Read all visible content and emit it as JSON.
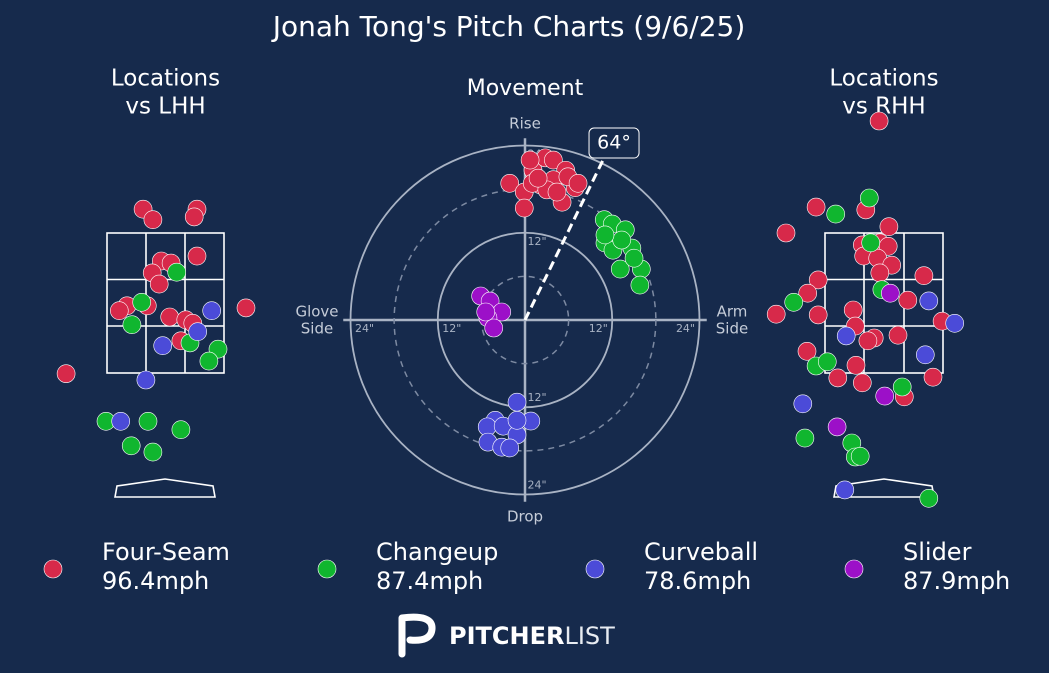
{
  "title": "Jonah Tong's Pitch Charts (9/6/25)",
  "logo": {
    "bold": "PITCHER",
    "light": "LIST"
  },
  "chart_data": [
    {
      "type": "location",
      "title": [
        "Locations",
        "vs LHH"
      ],
      "xlim": [
        -1.6,
        1.6
      ],
      "ylim": [
        -0.5,
        5.3
      ],
      "series": [
        {
          "color": "#d7294a",
          "x": [
            -0.32,
            -0.18,
            0.45,
            0.41,
            0.45,
            -0.06,
            0.08,
            -0.19,
            -0.09,
            1.15,
            -0.55,
            -0.66,
            -0.26,
            0.06,
            0.29,
            0.39,
            0.22,
            -1.42
          ],
          "y": [
            3.84,
            3.69,
            3.84,
            3.73,
            3.17,
            3.1,
            3.07,
            2.93,
            2.77,
            2.43,
            2.46,
            2.39,
            2.46,
            2.3,
            2.26,
            2.21,
            1.96,
            1.49
          ]
        },
        {
          "color": "#10b62f",
          "x": [
            0.16,
            -0.34,
            -0.48,
            0.35,
            0.75,
            0.62,
            -0.85,
            -0.25,
            0.22,
            -0.49,
            -0.18
          ],
          "y": [
            2.94,
            2.51,
            2.19,
            1.93,
            1.84,
            1.67,
            0.81,
            0.81,
            0.69,
            0.46,
            0.37
          ]
        },
        {
          "color": "#4b4bd8",
          "x": [
            0.66,
            0.46,
            -0.04,
            -0.28,
            -0.64
          ],
          "y": [
            2.39,
            2.09,
            1.89,
            1.4,
            0.81
          ]
        },
        {
          "color": "#9c10c8",
          "x": [],
          "y": []
        }
      ]
    },
    {
      "type": "movement",
      "title": "Movement",
      "rlim": [
        0,
        25
      ],
      "rticks": [
        {
          "value": 12,
          "label": "12\""
        },
        {
          "value": 24,
          "label": "24\""
        }
      ],
      "minor_rticks": [
        6,
        18
      ],
      "axis_labels": {
        "top": "Rise",
        "bottom": "Drop",
        "left": [
          "Glove",
          "Side"
        ],
        "right": [
          "Arm",
          "Side"
        ]
      },
      "arm_angle": {
        "value": 64,
        "label": "64°"
      },
      "series": [
        {
          "name": "Four-Seam",
          "velocity": 96.4,
          "velocity_label": "96.4mph",
          "color": "#d7294a",
          "x": [
            -2.1,
            -0.1,
            -0.1,
            1.1,
            2.8,
            3.9,
            5.6,
            6.9,
            5.1,
            2.1,
            3.9,
            5.9,
            1.0,
            3.0,
            1.8,
            4.4,
            7.3,
            0.7
          ],
          "y": [
            18.8,
            17.6,
            15.4,
            20.6,
            22.3,
            22.0,
            20.6,
            18.2,
            16.2,
            18.6,
            19.3,
            19.7,
            18.8,
            17.9,
            19.5,
            17.6,
            18.8,
            22.0
          ]
        },
        {
          "name": "Changeup",
          "velocity": 87.4,
          "velocity_label": "87.4mph",
          "color": "#10b62f",
          "x": [
            10.9,
            12.0,
            13.8,
            11.0,
            12.1,
            14.7,
            13.1,
            16.0,
            15.8,
            15.0,
            13.3,
            11.0
          ],
          "y": [
            13.8,
            13.2,
            12.4,
            10.6,
            9.6,
            9.9,
            7.0,
            7.0,
            4.8,
            8.5,
            11.0,
            11.7
          ]
        },
        {
          "name": "Curveball",
          "velocity": 78.6,
          "velocity_label": "78.6mph",
          "color": "#4b4bd8",
          "x": [
            -1.1,
            -4.1,
            -5.2,
            -3.0,
            -1.1,
            0.8,
            -5.1,
            -3.2,
            -2.1,
            -1.1
          ],
          "y": [
            -11.3,
            -13.8,
            -14.7,
            -14.6,
            -15.8,
            -13.9,
            -16.8,
            -17.5,
            -17.6,
            -13.8
          ]
        },
        {
          "name": "Slider",
          "velocity": 87.9,
          "velocity_label": "87.9mph",
          "color": "#9c10c8",
          "x": [
            -6.1,
            -4.8,
            -3.2,
            -5.1,
            -4.3,
            -5.4
          ],
          "y": [
            3.3,
            2.6,
            1.1,
            0.3,
            -1.1,
            1.1
          ]
        }
      ]
    },
    {
      "type": "location",
      "title": [
        "Locations",
        "vs RHH"
      ],
      "xlim": [
        -1.6,
        1.6
      ],
      "ylim": [
        -0.5,
        5.3
      ],
      "series": [
        {
          "color": "#d7294a",
          "x": [
            -0.07,
            -0.97,
            -0.26,
            0.07,
            -1.4,
            -0.31,
            -0.06,
            0.06,
            -0.29,
            -0.09,
            0.11,
            -0.06,
            -0.94,
            0.57,
            -1.09,
            0.34,
            -1.54,
            -0.94,
            -0.44,
            0.83,
            -0.41,
            -0.14,
            -0.23,
            0.2,
            -1.1,
            -0.4,
            -0.66,
            -0.31,
            0.7,
            0.29
          ],
          "y": [
            5.1,
            3.87,
            3.83,
            3.59,
            3.5,
            3.33,
            3.36,
            3.31,
            3.17,
            3.14,
            3.04,
            2.93,
            2.83,
            2.89,
            2.64,
            2.54,
            2.34,
            2.33,
            2.4,
            2.24,
            2.17,
            2.0,
            1.96,
            2.04,
            1.81,
            1.61,
            1.43,
            1.36,
            1.44,
            1.16
          ]
        },
        {
          "color": "#10b62f",
          "x": [
            -0.21,
            -0.69,
            -0.19,
            -0.03,
            -1.29,
            -0.97,
            -0.81,
            0.26,
            -1.13,
            -0.46,
            -0.41,
            -0.34,
            0.64
          ],
          "y": [
            4.0,
            3.77,
            3.36,
            2.69,
            2.51,
            1.6,
            1.66,
            1.3,
            0.57,
            0.5,
            0.3,
            0.31,
            -0.29
          ]
        },
        {
          "color": "#4b4bd8",
          "x": [
            0.64,
            1.01,
            -0.54,
            0.59,
            -1.16,
            -0.56
          ],
          "y": [
            2.53,
            2.21,
            2.03,
            1.76,
            1.06,
            -0.17
          ]
        },
        {
          "color": "#9c10c8",
          "x": [
            0.09,
            0.01,
            -0.67
          ],
          "y": [
            2.64,
            1.17,
            0.73
          ]
        }
      ]
    }
  ]
}
